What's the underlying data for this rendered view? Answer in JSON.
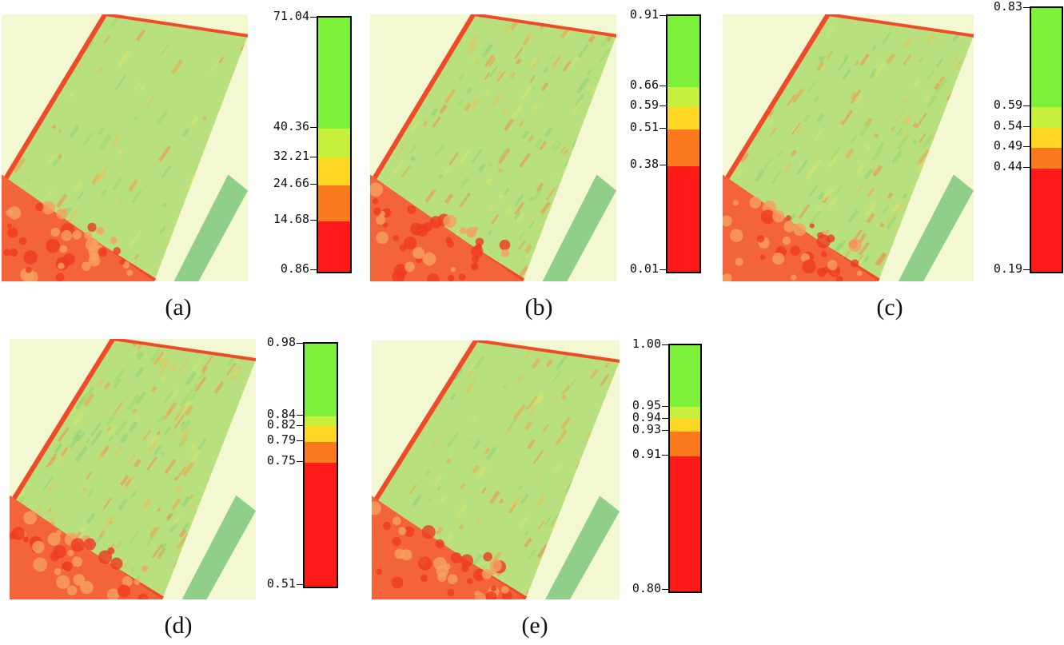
{
  "palette": {
    "red": "#ff1a1a",
    "orange": "#fb7a1e",
    "yellow": "#ffd623",
    "yellowgreen": "#c6f03c",
    "green": "#7df03a",
    "background": "#f3f7d2",
    "field": "#b9e07e",
    "edge": "#ef4b2a"
  },
  "panels": [
    {
      "id": "a",
      "caption": "(a)",
      "scale": {
        "labels": [
          "71.04",
          "40.36",
          "32.21",
          "24.66",
          "14.68",
          "0.86"
        ],
        "values": [
          71.04,
          40.36,
          32.21,
          24.66,
          14.68,
          0.86
        ]
      }
    },
    {
      "id": "b",
      "caption": "(b)",
      "scale": {
        "labels": [
          "0.91",
          "0.66",
          "0.59",
          "0.51",
          "0.38",
          "0.01"
        ],
        "values": [
          0.91,
          0.66,
          0.59,
          0.51,
          0.38,
          0.01
        ]
      }
    },
    {
      "id": "c",
      "caption": "(c)",
      "scale": {
        "labels": [
          "0.83",
          "0.59",
          "0.54",
          "0.49",
          "0.44",
          "0.19"
        ],
        "values": [
          0.83,
          0.59,
          0.54,
          0.49,
          0.44,
          0.19
        ]
      }
    },
    {
      "id": "d",
      "caption": "(d)",
      "scale": {
        "labels": [
          "0.98",
          "0.84",
          "0.82",
          "0.79",
          "0.75",
          "0.51"
        ],
        "values": [
          0.98,
          0.84,
          0.82,
          0.79,
          0.75,
          0.51
        ]
      }
    },
    {
      "id": "e",
      "caption": "(e)",
      "scale": {
        "labels": [
          "1.00",
          "0.95",
          "0.94",
          "0.93",
          "0.91",
          "0.80"
        ],
        "values": [
          1.0,
          0.95,
          0.94,
          0.93,
          0.91,
          0.8
        ]
      }
    }
  ]
}
